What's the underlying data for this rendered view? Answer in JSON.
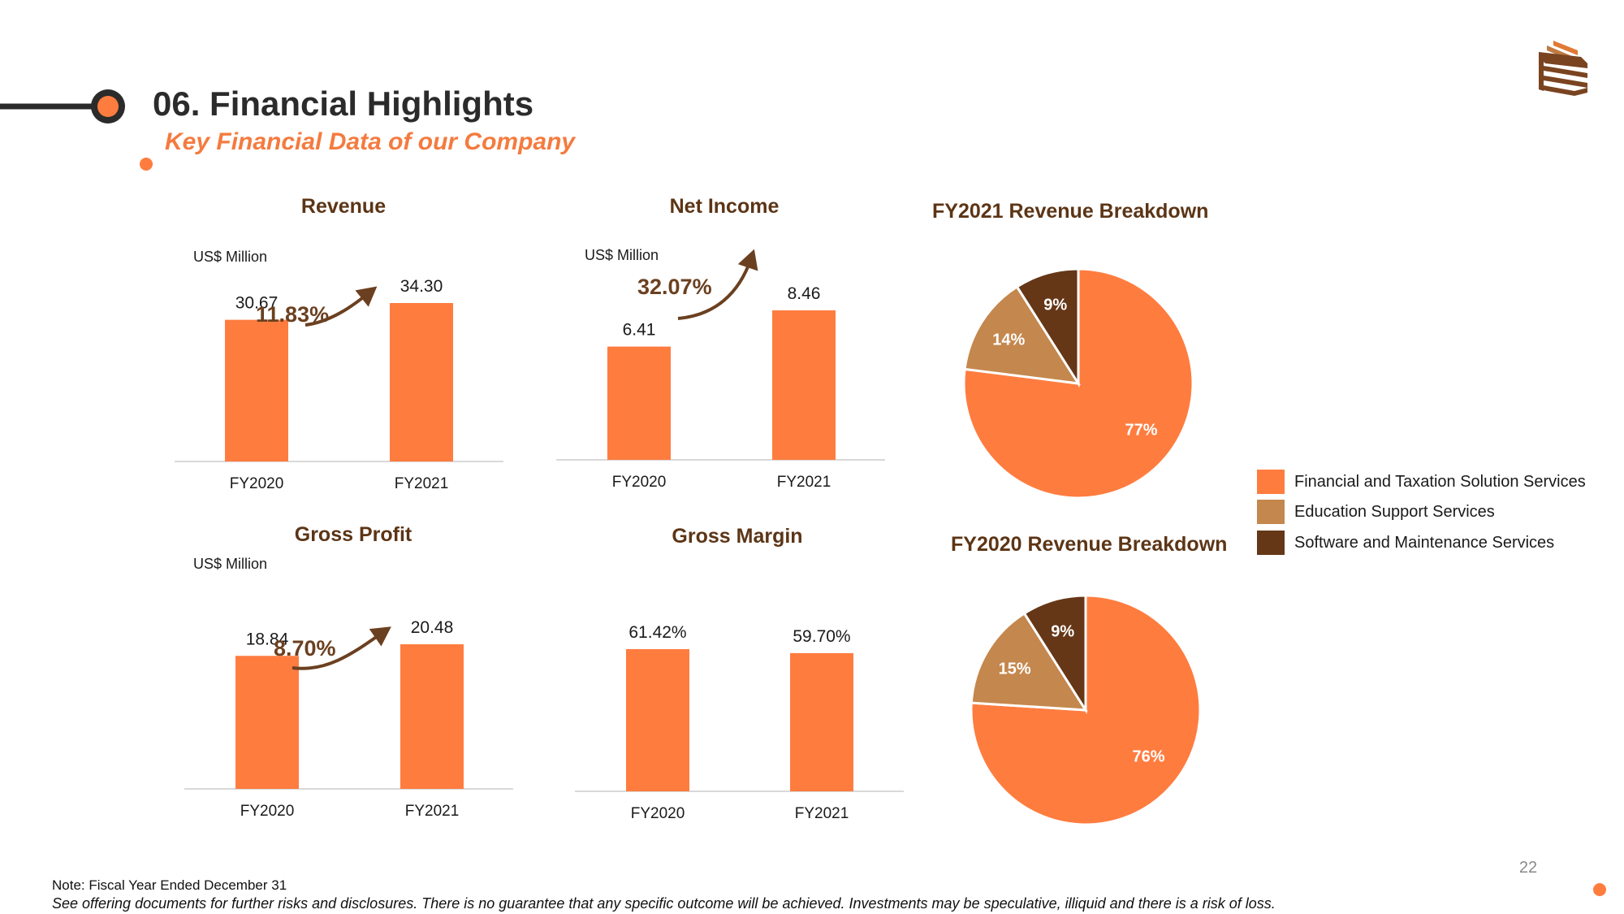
{
  "header": {
    "title": "06. Financial Highlights",
    "subtitle": "Key Financial Data of our Company"
  },
  "colors": {
    "accent": "#ff7c3f",
    "brown_light": "#c4874d",
    "brown_dark": "#653717",
    "title_brown": "#5c3516",
    "growth_brown": "#6b4020"
  },
  "footer": {
    "note": "Note: Fiscal Year Ended December 31",
    "disclaimer": "See offering documents for further risks and disclosures. There is no guarantee that any specific outcome will be achieved. Investments may be speculative, illiquid and there is a risk of loss.",
    "page_number": "22"
  },
  "legend": [
    {
      "label": "Financial and Taxation Solution Services",
      "color": "#ff7c3f"
    },
    {
      "label": "Education Support Services",
      "color": "#c4874d"
    },
    {
      "label": "Software and Maintenance Services",
      "color": "#653717"
    }
  ],
  "chart_data": [
    {
      "type": "bar",
      "title": "Revenue",
      "unit": "US$ Million",
      "categories": [
        "FY2020",
        "FY2021"
      ],
      "values": [
        30.67,
        34.3
      ],
      "value_labels": [
        "30.67",
        "34.30"
      ],
      "growth": "11.83%"
    },
    {
      "type": "bar",
      "title": "Net Income",
      "unit": "US$ Million",
      "categories": [
        "FY2020",
        "FY2021"
      ],
      "values": [
        6.41,
        8.46
      ],
      "value_labels": [
        "6.41",
        "8.46"
      ],
      "growth": "32.07%"
    },
    {
      "type": "bar",
      "title": "Gross Profit",
      "unit": "US$ Million",
      "categories": [
        "FY2020",
        "FY2021"
      ],
      "values": [
        18.84,
        20.48
      ],
      "value_labels": [
        "18.84",
        "20.48"
      ],
      "growth": "8.70%"
    },
    {
      "type": "bar",
      "title": "Gross Margin",
      "unit": "",
      "categories": [
        "FY2020",
        "FY2021"
      ],
      "values": [
        61.42,
        59.7
      ],
      "value_labels": [
        "61.42%",
        "59.70%"
      ],
      "growth": ""
    },
    {
      "type": "pie",
      "title": "FY2021 Revenue Breakdown",
      "slices": [
        {
          "name": "Financial and Taxation Solution Services",
          "value": 77,
          "label": "77%"
        },
        {
          "name": "Education Support Services",
          "value": 14,
          "label": "14%"
        },
        {
          "name": "Software and Maintenance Services",
          "value": 9,
          "label": "9%"
        }
      ]
    },
    {
      "type": "pie",
      "title": "FY2020 Revenue Breakdown",
      "slices": [
        {
          "name": "Financial and Taxation Solution Services",
          "value": 76,
          "label": "76%"
        },
        {
          "name": "Education Support Services",
          "value": 15,
          "label": "15%"
        },
        {
          "name": "Software and Maintenance Services",
          "value": 9,
          "label": "9%"
        }
      ]
    }
  ]
}
